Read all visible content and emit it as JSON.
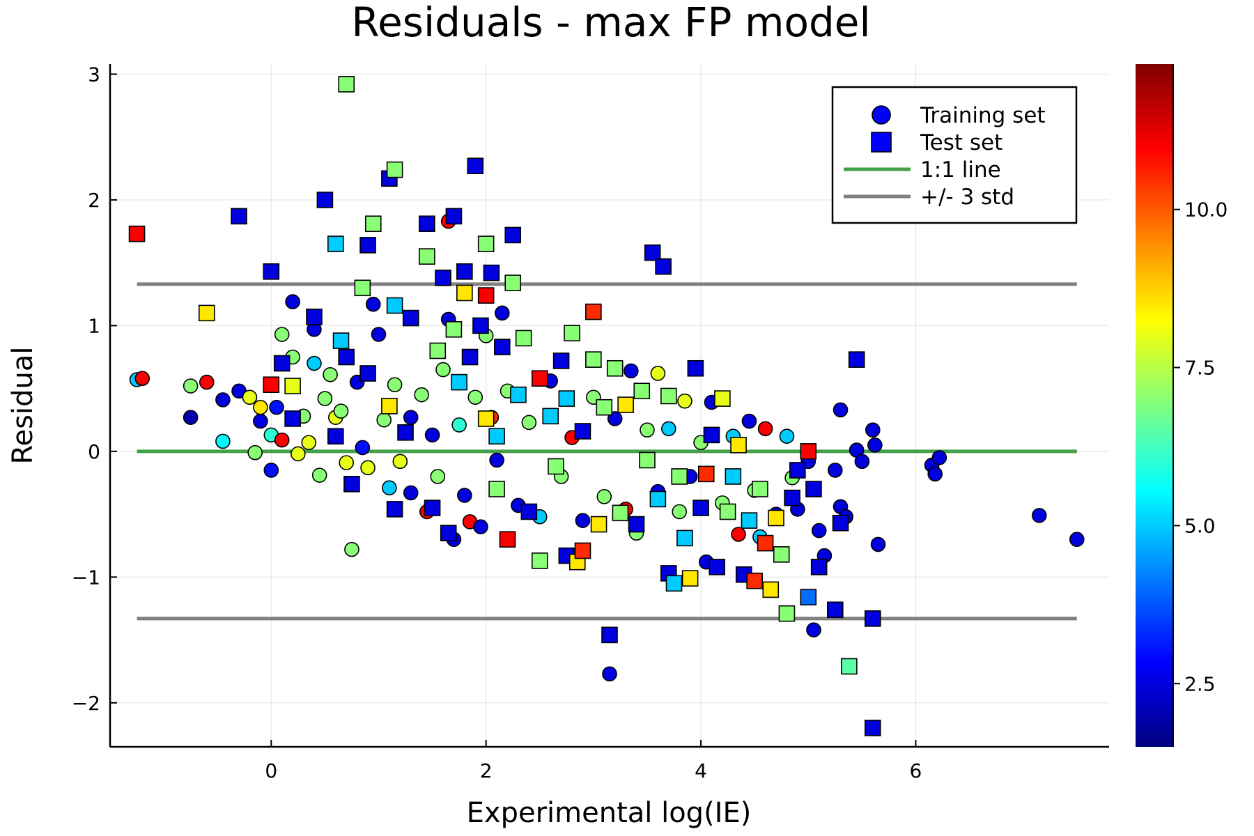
{
  "chart_data": {
    "type": "scatter",
    "title": "Residuals - max FP model",
    "xlabel": "Experimental log(IE)",
    "ylabel": "Residual",
    "xlim": [
      -1.5,
      7.8
    ],
    "ylim": [
      -2.35,
      3.08
    ],
    "xticks": [
      0,
      2,
      4,
      6
    ],
    "xtick_labels": [
      "0",
      "2",
      "4",
      "6"
    ],
    "yticks": [
      -2,
      -1,
      0,
      1,
      2,
      3
    ],
    "ytick_labels": [
      "−2",
      "−1",
      "0",
      "1",
      "2",
      "3"
    ],
    "grid": true,
    "legend_position": "top-right",
    "colorbar": {
      "colormap": "jet",
      "range": [
        1.5,
        12.3
      ],
      "ticks": [
        2.5,
        5.0,
        7.5,
        10.0
      ],
      "tick_labels": [
        "2.5",
        "5.0",
        "7.5",
        "10.0"
      ]
    },
    "legend": [
      {
        "label": "Training set",
        "marker": "circle",
        "color": "#0000ff"
      },
      {
        "label": "Test set",
        "marker": "square",
        "color": "#0000ff"
      },
      {
        "label": "1:1 line",
        "line": true,
        "color": "#44a04b"
      },
      {
        "label": "+/- 3 std",
        "line": true,
        "color": "#808080"
      }
    ],
    "lines": [
      {
        "name": "1:1 line",
        "color": "#44a04b",
        "x": [
          -1.25,
          7.5
        ],
        "y": [
          0,
          0
        ]
      },
      {
        "name": "+/- 3 std",
        "color": "#808080",
        "x": [
          -1.25,
          7.5
        ],
        "y": [
          1.33,
          1.33
        ]
      },
      {
        "name": "+/- 3 std",
        "color": "#808080",
        "x": [
          -1.25,
          7.5
        ],
        "y": [
          -1.33,
          -1.33
        ]
      }
    ],
    "series": [
      {
        "name": "Training set",
        "marker": "circle",
        "points": [
          [
            -1.25,
            0.57,
            5.0
          ],
          [
            -1.2,
            0.58,
            11.0
          ],
          [
            -0.75,
            0.27,
            2.0
          ],
          [
            -0.75,
            0.52,
            7.0
          ],
          [
            -0.6,
            0.55,
            11.0
          ],
          [
            -0.45,
            0.41,
            2.5
          ],
          [
            -0.45,
            0.08,
            5.5
          ],
          [
            -0.3,
            0.48,
            2.5
          ],
          [
            -0.2,
            0.43,
            8.0
          ],
          [
            -0.15,
            -0.01,
            7.0
          ],
          [
            -0.1,
            0.24,
            2.5
          ],
          [
            -0.1,
            0.35,
            8.5
          ],
          [
            0.0,
            -0.15,
            3.0
          ],
          [
            0.0,
            0.13,
            6.0
          ],
          [
            0.05,
            0.35,
            3.0
          ],
          [
            0.1,
            0.09,
            11.0
          ],
          [
            0.1,
            0.93,
            7.0
          ],
          [
            0.2,
            0.75,
            7.0
          ],
          [
            0.2,
            1.19,
            2.5
          ],
          [
            0.25,
            -0.02,
            8.0
          ],
          [
            0.3,
            0.28,
            7.0
          ],
          [
            0.35,
            0.07,
            8.0
          ],
          [
            0.4,
            0.7,
            5.0
          ],
          [
            0.4,
            0.97,
            2.5
          ],
          [
            0.45,
            -0.19,
            7.0
          ],
          [
            0.5,
            0.42,
            7.0
          ],
          [
            0.55,
            0.61,
            7.0
          ],
          [
            0.6,
            0.27,
            8.0
          ],
          [
            0.65,
            0.32,
            7.0
          ],
          [
            0.7,
            -0.09,
            8.0
          ],
          [
            0.75,
            -0.78,
            7.0
          ],
          [
            0.8,
            0.55,
            2.5
          ],
          [
            0.85,
            0.03,
            3.0
          ],
          [
            0.9,
            -0.13,
            8.0
          ],
          [
            0.95,
            1.17,
            2.5
          ],
          [
            1.0,
            0.93,
            2.5
          ],
          [
            1.05,
            0.25,
            7.0
          ],
          [
            1.1,
            -0.29,
            5.0
          ],
          [
            1.15,
            0.53,
            7.0
          ],
          [
            1.2,
            -0.08,
            8.0
          ],
          [
            1.3,
            0.27,
            2.5
          ],
          [
            1.3,
            -0.33,
            2.5
          ],
          [
            1.4,
            0.45,
            7.0
          ],
          [
            1.45,
            -0.48,
            11.0
          ],
          [
            1.5,
            0.13,
            2.5
          ],
          [
            1.55,
            -0.2,
            7.0
          ],
          [
            1.6,
            0.65,
            7.0
          ],
          [
            1.65,
            1.05,
            2.5
          ],
          [
            1.65,
            1.83,
            11.0
          ],
          [
            1.7,
            -0.7,
            2.5
          ],
          [
            1.75,
            0.21,
            6.0
          ],
          [
            1.8,
            -0.35,
            2.5
          ],
          [
            1.85,
            -0.56,
            11.0
          ],
          [
            1.9,
            0.43,
            7.0
          ],
          [
            1.95,
            -0.6,
            2.5
          ],
          [
            2.0,
            0.92,
            7.0
          ],
          [
            2.05,
            0.27,
            10.5
          ],
          [
            2.1,
            -0.07,
            2.5
          ],
          [
            2.15,
            1.1,
            2.5
          ],
          [
            2.2,
            0.48,
            7.0
          ],
          [
            2.3,
            -0.43,
            2.5
          ],
          [
            2.4,
            0.23,
            7.0
          ],
          [
            2.5,
            -0.52,
            5.0
          ],
          [
            2.6,
            0.56,
            2.5
          ],
          [
            2.7,
            -0.2,
            7.0
          ],
          [
            2.8,
            0.11,
            11.0
          ],
          [
            2.9,
            -0.55,
            2.5
          ],
          [
            3.0,
            0.43,
            7.0
          ],
          [
            3.1,
            -0.36,
            7.0
          ],
          [
            3.15,
            -1.77,
            2.5
          ],
          [
            3.2,
            0.26,
            2.5
          ],
          [
            3.3,
            -0.46,
            11.0
          ],
          [
            3.35,
            0.64,
            2.5
          ],
          [
            3.4,
            -0.65,
            7.0
          ],
          [
            3.5,
            0.17,
            7.0
          ],
          [
            3.6,
            -0.32,
            2.5
          ],
          [
            3.6,
            0.62,
            8.0
          ],
          [
            3.7,
            0.18,
            5.0
          ],
          [
            3.8,
            -0.48,
            7.0
          ],
          [
            3.85,
            0.4,
            8.0
          ],
          [
            3.9,
            -0.2,
            2.5
          ],
          [
            4.0,
            0.07,
            7.0
          ],
          [
            4.05,
            -0.88,
            2.5
          ],
          [
            4.1,
            0.39,
            2.5
          ],
          [
            4.2,
            -0.41,
            7.0
          ],
          [
            4.3,
            0.12,
            5.0
          ],
          [
            4.35,
            -0.66,
            11.0
          ],
          [
            4.45,
            0.24,
            2.5
          ],
          [
            4.5,
            -0.31,
            7.0
          ],
          [
            4.55,
            -0.68,
            5.0
          ],
          [
            4.6,
            0.18,
            11.0
          ],
          [
            4.7,
            -0.5,
            2.5
          ],
          [
            4.8,
            0.12,
            5.0
          ],
          [
            4.85,
            -0.21,
            7.0
          ],
          [
            4.9,
            -0.46,
            2.5
          ],
          [
            5.0,
            -0.08,
            2.5
          ],
          [
            5.05,
            -1.42,
            2.5
          ],
          [
            5.1,
            -0.63,
            2.5
          ],
          [
            5.15,
            -0.83,
            2.5
          ],
          [
            5.25,
            -0.15,
            2.5
          ],
          [
            5.3,
            0.33,
            2.5
          ],
          [
            5.3,
            -0.44,
            2.5
          ],
          [
            5.35,
            -0.52,
            2.5
          ],
          [
            5.45,
            0.01,
            2.5
          ],
          [
            5.5,
            -0.08,
            2.5
          ],
          [
            5.6,
            0.17,
            2.5
          ],
          [
            5.62,
            0.05,
            2.5
          ],
          [
            5.65,
            -0.74,
            2.5
          ],
          [
            6.15,
            -0.11,
            2.5
          ],
          [
            6.18,
            -0.18,
            2.5
          ],
          [
            6.22,
            -0.05,
            2.5
          ],
          [
            7.15,
            -0.51,
            2.5
          ],
          [
            7.5,
            -0.7,
            2.5
          ]
        ]
      },
      {
        "name": "Test set",
        "marker": "square",
        "points": [
          [
            -1.25,
            1.73,
            11.0
          ],
          [
            -0.6,
            1.1,
            8.5
          ],
          [
            -0.3,
            1.87,
            2.5
          ],
          [
            0.0,
            1.43,
            2.5
          ],
          [
            0.0,
            0.53,
            11.0
          ],
          [
            0.1,
            0.7,
            2.5
          ],
          [
            0.2,
            0.52,
            8.0
          ],
          [
            0.2,
            0.26,
            2.5
          ],
          [
            0.4,
            1.07,
            2.5
          ],
          [
            0.5,
            2.0,
            2.5
          ],
          [
            0.6,
            1.65,
            5.0
          ],
          [
            0.6,
            0.12,
            2.5
          ],
          [
            0.65,
            0.88,
            5.0
          ],
          [
            0.7,
            2.92,
            7.0
          ],
          [
            0.7,
            0.75,
            2.5
          ],
          [
            0.75,
            -0.26,
            2.5
          ],
          [
            0.85,
            1.3,
            7.0
          ],
          [
            0.9,
            1.64,
            2.5
          ],
          [
            0.9,
            0.62,
            2.5
          ],
          [
            0.95,
            1.81,
            7.0
          ],
          [
            1.1,
            0.36,
            8.5
          ],
          [
            1.1,
            2.17,
            2.5
          ],
          [
            1.15,
            2.24,
            7.0
          ],
          [
            1.15,
            -0.46,
            2.5
          ],
          [
            1.15,
            1.16,
            5.0
          ],
          [
            1.25,
            0.15,
            2.5
          ],
          [
            1.3,
            1.06,
            2.5
          ],
          [
            1.45,
            1.55,
            7.0
          ],
          [
            1.45,
            1.81,
            2.5
          ],
          [
            1.5,
            -0.45,
            2.5
          ],
          [
            1.55,
            0.8,
            7.0
          ],
          [
            1.6,
            1.38,
            2.5
          ],
          [
            1.65,
            -0.65,
            2.5
          ],
          [
            1.7,
            0.97,
            7.0
          ],
          [
            1.7,
            1.87,
            2.5
          ],
          [
            1.75,
            0.55,
            5.0
          ],
          [
            1.8,
            1.43,
            2.5
          ],
          [
            1.8,
            1.26,
            8.5
          ],
          [
            1.85,
            0.75,
            2.5
          ],
          [
            1.9,
            2.27,
            2.5
          ],
          [
            1.95,
            1.0,
            2.5
          ],
          [
            2.0,
            1.24,
            11.0
          ],
          [
            2.0,
            1.65,
            7.0
          ],
          [
            2.0,
            0.26,
            8.5
          ],
          [
            2.05,
            1.42,
            2.5
          ],
          [
            2.1,
            -0.3,
            7.0
          ],
          [
            2.1,
            0.12,
            5.0
          ],
          [
            2.15,
            0.83,
            2.5
          ],
          [
            2.2,
            -0.7,
            11.0
          ],
          [
            2.25,
            1.72,
            2.5
          ],
          [
            2.25,
            1.34,
            7.0
          ],
          [
            2.3,
            0.45,
            5.0
          ],
          [
            2.35,
            0.9,
            7.0
          ],
          [
            2.4,
            -0.48,
            2.5
          ],
          [
            2.5,
            0.58,
            11.0
          ],
          [
            2.5,
            -0.87,
            7.0
          ],
          [
            2.6,
            0.28,
            5.0
          ],
          [
            2.65,
            -0.12,
            7.0
          ],
          [
            2.7,
            0.72,
            2.5
          ],
          [
            2.75,
            -0.83,
            2.5
          ],
          [
            2.75,
            0.42,
            5.0
          ],
          [
            2.8,
            0.94,
            7.0
          ],
          [
            2.85,
            -0.88,
            8.5
          ],
          [
            2.9,
            0.16,
            2.5
          ],
          [
            2.9,
            -0.79,
            10.5
          ],
          [
            3.0,
            1.11,
            10.5
          ],
          [
            3.0,
            0.73,
            7.0
          ],
          [
            3.05,
            -0.58,
            8.5
          ],
          [
            3.1,
            0.35,
            7.0
          ],
          [
            3.15,
            -1.46,
            2.5
          ],
          [
            3.2,
            0.66,
            7.0
          ],
          [
            3.25,
            -0.49,
            7.0
          ],
          [
            3.3,
            0.37,
            8.5
          ],
          [
            3.4,
            -0.58,
            2.5
          ],
          [
            3.45,
            0.48,
            7.0
          ],
          [
            3.5,
            -0.07,
            7.0
          ],
          [
            3.55,
            1.58,
            2.5
          ],
          [
            3.6,
            -0.38,
            5.0
          ],
          [
            3.65,
            1.47,
            2.5
          ],
          [
            3.7,
            0.44,
            7.0
          ],
          [
            3.7,
            -0.97,
            2.5
          ],
          [
            3.75,
            -1.05,
            5.0
          ],
          [
            3.8,
            -0.2,
            7.0
          ],
          [
            3.85,
            -0.69,
            5.0
          ],
          [
            3.9,
            -1.01,
            8.5
          ],
          [
            3.95,
            0.66,
            2.5
          ],
          [
            4.0,
            -0.45,
            2.5
          ],
          [
            4.05,
            -0.18,
            10.5
          ],
          [
            4.1,
            0.13,
            2.5
          ],
          [
            4.15,
            -0.92,
            2.5
          ],
          [
            4.2,
            0.42,
            8.0
          ],
          [
            4.25,
            -0.48,
            7.0
          ],
          [
            4.3,
            -0.2,
            5.0
          ],
          [
            4.35,
            0.05,
            8.5
          ],
          [
            4.4,
            -0.98,
            2.5
          ],
          [
            4.45,
            -0.55,
            5.0
          ],
          [
            4.5,
            -1.03,
            10.5
          ],
          [
            4.55,
            -0.3,
            7.0
          ],
          [
            4.6,
            -0.73,
            10.5
          ],
          [
            4.65,
            -1.1,
            8.5
          ],
          [
            4.7,
            -0.53,
            8.5
          ],
          [
            4.75,
            -0.82,
            7.0
          ],
          [
            4.8,
            -1.29,
            7.0
          ],
          [
            4.85,
            -0.37,
            2.5
          ],
          [
            4.9,
            -0.15,
            2.5
          ],
          [
            5.0,
            0.0,
            11.0
          ],
          [
            5.0,
            -1.16,
            4.0
          ],
          [
            5.05,
            -0.3,
            2.5
          ],
          [
            5.1,
            -0.92,
            2.5
          ],
          [
            5.25,
            -1.26,
            2.5
          ],
          [
            5.3,
            -0.57,
            2.5
          ],
          [
            5.38,
            -1.71,
            6.5
          ],
          [
            5.45,
            0.73,
            2.5
          ],
          [
            5.6,
            -1.33,
            2.5
          ],
          [
            5.6,
            -2.2,
            2.5
          ]
        ]
      }
    ]
  }
}
